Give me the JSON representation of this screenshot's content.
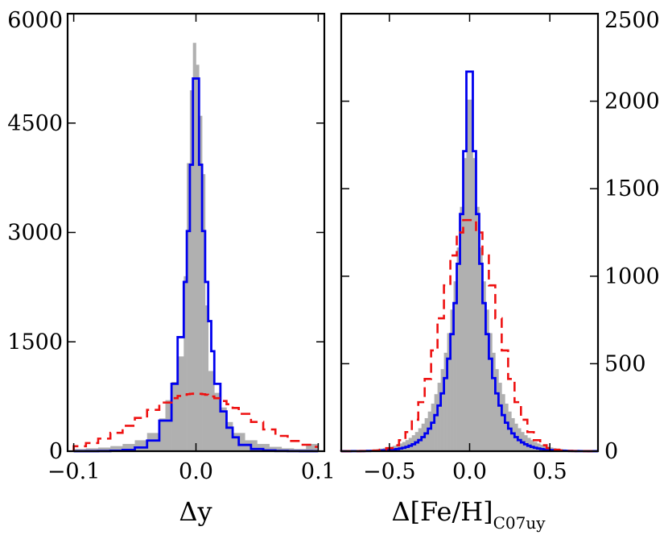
{
  "chart_data": [
    {
      "type": "histogram",
      "xlabel": "Δy",
      "xlim": [
        -0.105,
        0.105
      ],
      "ylim": [
        0,
        6000
      ],
      "x_ticks": [
        -0.1,
        0.0,
        0.1
      ],
      "x_tick_labels": [
        "−0.1",
        "0.0",
        "0.1"
      ],
      "y_ticks": [
        0,
        1500,
        3000,
        4500,
        6000
      ],
      "y_tick_labels": [
        "0",
        "1500",
        "3000",
        "4500",
        "6000"
      ],
      "y_axis_side": "left",
      "series": [
        {
          "style": "filled-histogram",
          "color": "#b0b0b0",
          "bin_edges": [
            -0.1,
            -0.09,
            -0.08,
            -0.07,
            -0.06,
            -0.05,
            -0.04,
            -0.03,
            -0.025,
            -0.02,
            -0.015,
            -0.01,
            -0.0075,
            -0.005,
            -0.0025,
            0.0,
            0.0025,
            0.005,
            0.0075,
            0.01,
            0.015,
            0.02,
            0.025,
            0.03,
            0.04,
            0.05,
            0.06,
            0.07,
            0.08,
            0.09,
            0.1
          ],
          "values": [
            30,
            40,
            50,
            70,
            100,
            150,
            250,
            450,
            700,
            950,
            1300,
            2400,
            3950,
            4950,
            5600,
            5300,
            4600,
            3800,
            2000,
            1100,
            800,
            600,
            400,
            250,
            150,
            100,
            60,
            40,
            30,
            100
          ]
        },
        {
          "style": "step-line",
          "color": "#0000ee",
          "center": 0.0,
          "peak": 5830,
          "shape": "laplace",
          "scale": 0.0095
        },
        {
          "style": "dashed-step-line",
          "color": "#ee1111",
          "center": 0.0,
          "peak": 790,
          "shape": "gaussian",
          "sigma": 0.043
        }
      ]
    },
    {
      "type": "histogram",
      "xlabel": "Δ[Fe/H]",
      "xlabel_subscript": "C07uy",
      "xlim": [
        -0.8,
        0.8
      ],
      "ylim": [
        0,
        2500
      ],
      "x_ticks": [
        -0.5,
        0.0,
        0.5
      ],
      "x_tick_labels": [
        "−0.5",
        "0.0",
        "0.5"
      ],
      "y_ticks": [
        0,
        500,
        1000,
        1500,
        2000,
        2500
      ],
      "y_tick_labels": [
        "0",
        "500",
        "1000",
        "1500",
        "2000",
        "2500"
      ],
      "y_axis_side": "right",
      "series": [
        {
          "style": "filled-histogram",
          "color": "#b0b0b0",
          "shape": "laplace",
          "center": 0.0,
          "peak": 2200,
          "scale": 0.11,
          "bin_width": 0.02
        },
        {
          "style": "step-line",
          "color": "#0000ee",
          "shape": "laplace",
          "center": 0.0,
          "peak": 2440,
          "scale": 0.085,
          "bin_width": 0.02
        },
        {
          "style": "dashed-step-line",
          "color": "#ee1111",
          "shape": "gaussian",
          "center": 0.0,
          "peak": 1330,
          "sigma": 0.17,
          "bin_width": 0.04
        }
      ]
    }
  ]
}
